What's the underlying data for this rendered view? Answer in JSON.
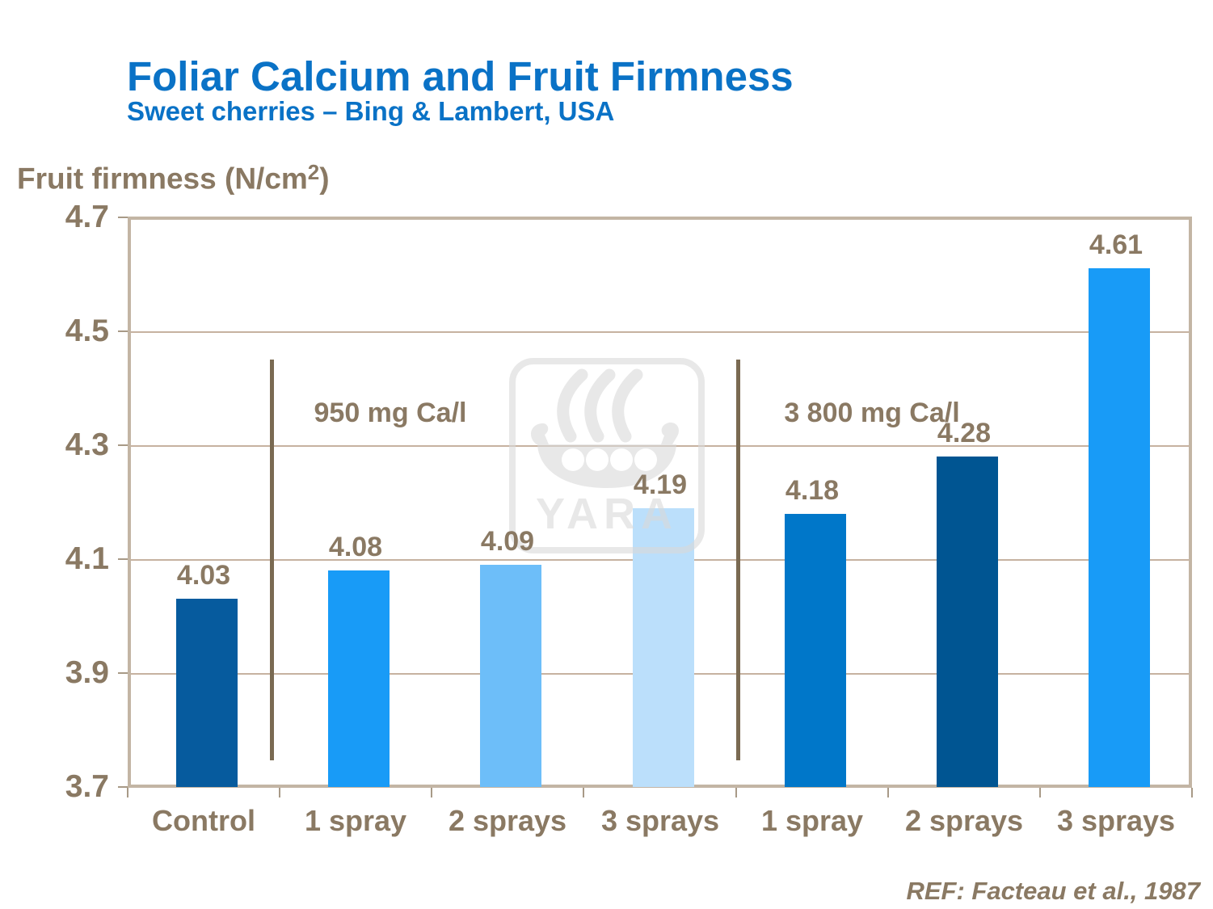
{
  "header": {
    "title": "Foliar Calcium and Fruit Firmness",
    "subtitle": "Sweet cherries – Bing & Lambert, USA"
  },
  "axis_title": {
    "prefix": "Fruit firmness (N/cm",
    "sup": "2",
    "suffix": ")"
  },
  "chart_data": {
    "type": "bar",
    "title": "Foliar Calcium and Fruit Firmness",
    "subtitle": "Sweet cherries – Bing & Lambert, USA",
    "ylabel": "Fruit firmness (N/cm²)",
    "xlabel": "",
    "ylim": [
      3.7,
      4.7
    ],
    "yticks": [
      3.7,
      3.9,
      4.1,
      4.3,
      4.5,
      4.7
    ],
    "grid": true,
    "categories": [
      "Control",
      "1 spray",
      "2 sprays",
      "3 sprays",
      "1 spray",
      "2 sprays",
      "3 sprays"
    ],
    "values": [
      4.03,
      4.08,
      4.09,
      4.19,
      4.18,
      4.28,
      4.61
    ],
    "value_labels": [
      "4.03",
      "4.08",
      "4.09",
      "4.19",
      "4.18",
      "4.28",
      "4.61"
    ],
    "bar_colors": [
      "#065B9E",
      "#189BF7",
      "#6DBEF9",
      "#BBDFFB",
      "#0077C9",
      "#005592",
      "#189BF7"
    ],
    "annotations": [
      {
        "text": "950 mg Ca/l",
        "applies_to": [
          "1 spray",
          "2 sprays",
          "3 sprays"
        ]
      },
      {
        "text": "3 800 mg Ca/l",
        "applies_to": [
          "1 spray",
          "2 sprays",
          "3 sprays"
        ]
      }
    ],
    "legend": null
  },
  "watermark": {
    "brand": "YARA"
  },
  "footer": {
    "ref": "REF: Facteau et al., 1987"
  },
  "colors": {
    "title_blue": "#0A72C6",
    "text_brown": "#8A7963",
    "divider_brown": "#7A6A52",
    "gridline_tan": "#C6B2A0",
    "border_tan": "#C3B5A4",
    "watermark_gray": "#D9D9D9"
  }
}
